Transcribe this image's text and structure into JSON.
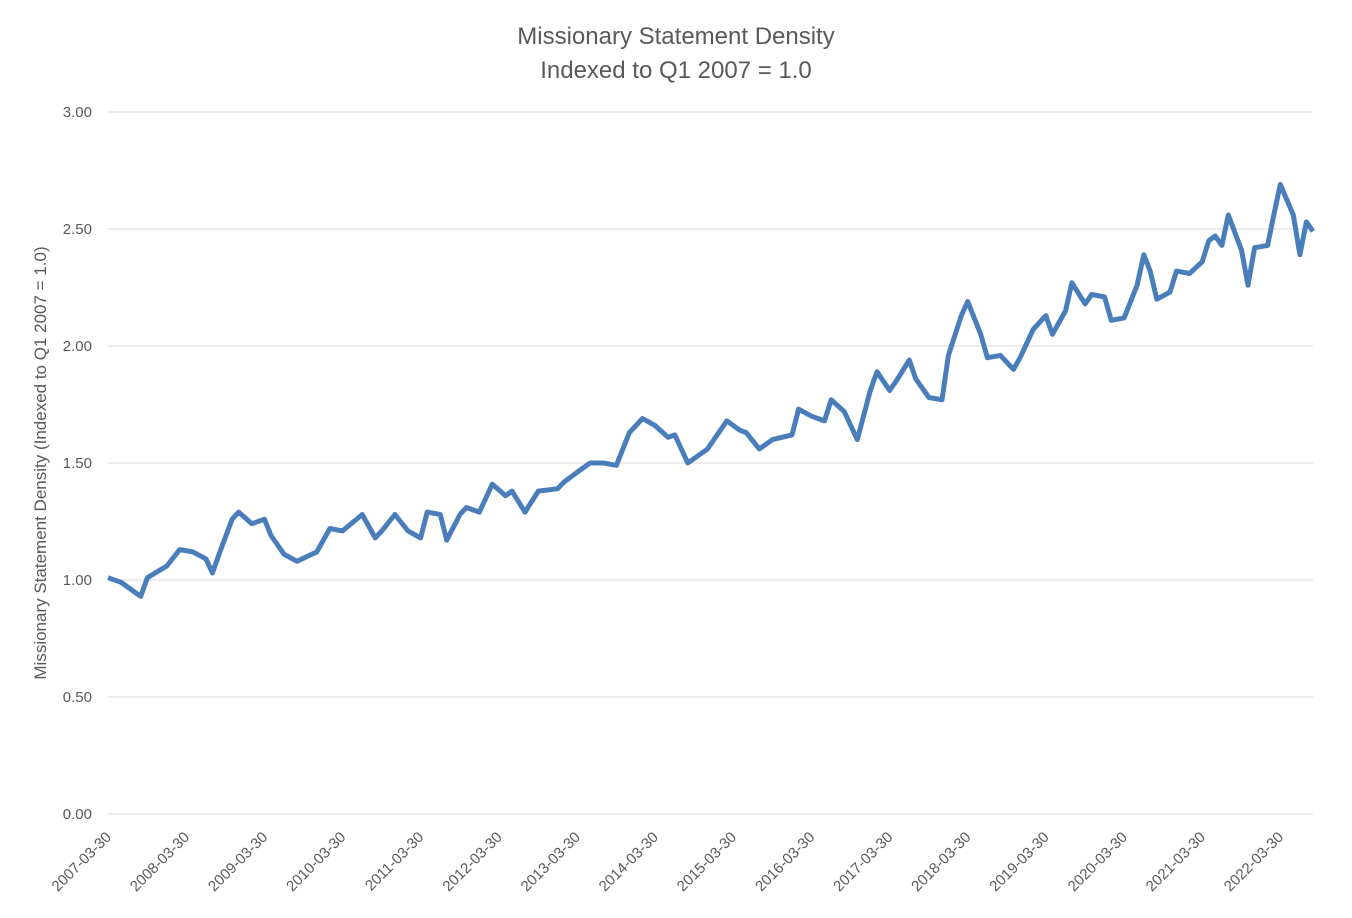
{
  "chart_data": {
    "type": "line",
    "title": "Missionary Statement Density",
    "subtitle": "Indexed to Q1 2007 = 1.0",
    "y_label": "Missionary Statement Density (Indexed to Q1 2007 = 1.0)",
    "xlim": [
      "2007-03-30",
      "2022-08-30"
    ],
    "xticks": [
      "2007-03-30",
      "2008-03-30",
      "2009-03-30",
      "2010-03-30",
      "2011-03-30",
      "2012-03-30",
      "2013-03-30",
      "2014-03-30",
      "2015-03-30",
      "2016-03-30",
      "2017-03-30",
      "2018-03-30",
      "2019-03-30",
      "2020-03-30",
      "2021-03-30",
      "2022-03-30"
    ],
    "ylim": [
      0,
      3
    ],
    "yticks": [
      {
        "value": 0,
        "label": "0.00"
      },
      {
        "value": 0.5,
        "label": "0.50"
      },
      {
        "value": 1,
        "label": "1.00"
      },
      {
        "value": 1.5,
        "label": "1.50"
      },
      {
        "value": 2,
        "label": "2.00"
      },
      {
        "value": 2.5,
        "label": "2.50"
      },
      {
        "value": 3,
        "label": "3.00"
      }
    ],
    "grid": true,
    "x": [
      "2007-03-30",
      "2007-05-30",
      "2007-07-30",
      "2007-08-30",
      "2007-09-30",
      "2007-12-30",
      "2008-02-28",
      "2008-04-30",
      "2008-06-30",
      "2008-07-30",
      "2008-08-30",
      "2008-10-30",
      "2008-11-30",
      "2009-01-30",
      "2009-03-30",
      "2009-04-30",
      "2009-06-30",
      "2009-08-30",
      "2009-11-30",
      "2010-01-30",
      "2010-03-30",
      "2010-06-30",
      "2010-08-30",
      "2010-09-30",
      "2010-11-30",
      "2011-01-30",
      "2011-03-30",
      "2011-04-30",
      "2011-06-30",
      "2011-07-30",
      "2011-09-30",
      "2011-10-30",
      "2011-12-30",
      "2012-02-28",
      "2012-04-30",
      "2012-05-30",
      "2012-07-30",
      "2012-09-30",
      "2012-12-30",
      "2013-01-30",
      "2013-03-30",
      "2013-05-30",
      "2013-07-30",
      "2013-09-30",
      "2013-11-30",
      "2014-01-30",
      "2014-03-30",
      "2014-05-30",
      "2014-06-30",
      "2014-08-30",
      "2014-11-30",
      "2014-12-30",
      "2015-02-28",
      "2015-04-30",
      "2015-05-30",
      "2015-07-30",
      "2015-09-30",
      "2015-12-30",
      "2016-01-30",
      "2016-03-30",
      "2016-05-30",
      "2016-06-30",
      "2016-08-30",
      "2016-10-30",
      "2016-12-30",
      "2017-01-30",
      "2017-03-30",
      "2017-04-30",
      "2017-06-30",
      "2017-07-30",
      "2017-09-30",
      "2017-11-30",
      "2017-12-30",
      "2018-02-28",
      "2018-03-30",
      "2018-05-30",
      "2018-06-30",
      "2018-08-30",
      "2018-10-30",
      "2018-11-30",
      "2019-01-30",
      "2019-03-30",
      "2019-04-30",
      "2019-06-30",
      "2019-07-30",
      "2019-09-30",
      "2019-10-30",
      "2019-12-30",
      "2020-01-30",
      "2020-03-30",
      "2020-05-30",
      "2020-06-30",
      "2020-07-30",
      "2020-08-30",
      "2020-10-30",
      "2020-11-30",
      "2021-01-30",
      "2021-03-30",
      "2021-04-30",
      "2021-05-30",
      "2021-06-30",
      "2021-07-30",
      "2021-09-30",
      "2021-10-30",
      "2021-11-30",
      "2022-01-30",
      "2022-02-28",
      "2022-03-30",
      "2022-05-30",
      "2022-06-30",
      "2022-07-30",
      "2022-08-30"
    ],
    "series": [
      {
        "name": "Missionary Statement Density",
        "color": "#4a7ebb",
        "values": [
          1.01,
          0.99,
          0.95,
          0.93,
          1.01,
          1.06,
          1.13,
          1.12,
          1.09,
          1.03,
          1.11,
          1.26,
          1.29,
          1.24,
          1.26,
          1.19,
          1.11,
          1.08,
          1.12,
          1.22,
          1.21,
          1.28,
          1.18,
          1.21,
          1.28,
          1.21,
          1.18,
          1.29,
          1.28,
          1.17,
          1.28,
          1.31,
          1.29,
          1.41,
          1.36,
          1.38,
          1.29,
          1.38,
          1.39,
          1.42,
          1.46,
          1.5,
          1.5,
          1.49,
          1.63,
          1.69,
          1.66,
          1.61,
          1.62,
          1.5,
          1.56,
          1.6,
          1.68,
          1.64,
          1.63,
          1.56,
          1.6,
          1.62,
          1.73,
          1.7,
          1.68,
          1.77,
          1.72,
          1.6,
          1.81,
          1.89,
          1.81,
          1.85,
          1.94,
          1.86,
          1.78,
          1.77,
          1.96,
          2.13,
          2.19,
          2.05,
          1.95,
          1.96,
          1.9,
          1.95,
          2.07,
          2.13,
          2.05,
          2.15,
          2.27,
          2.18,
          2.22,
          2.21,
          2.11,
          2.12,
          2.26,
          2.39,
          2.32,
          2.2,
          2.23,
          2.32,
          2.31,
          2.36,
          2.45,
          2.47,
          2.43,
          2.56,
          2.41,
          2.26,
          2.42,
          2.43,
          2.56,
          2.69,
          2.56,
          2.39,
          2.53,
          2.49
        ]
      }
    ]
  }
}
